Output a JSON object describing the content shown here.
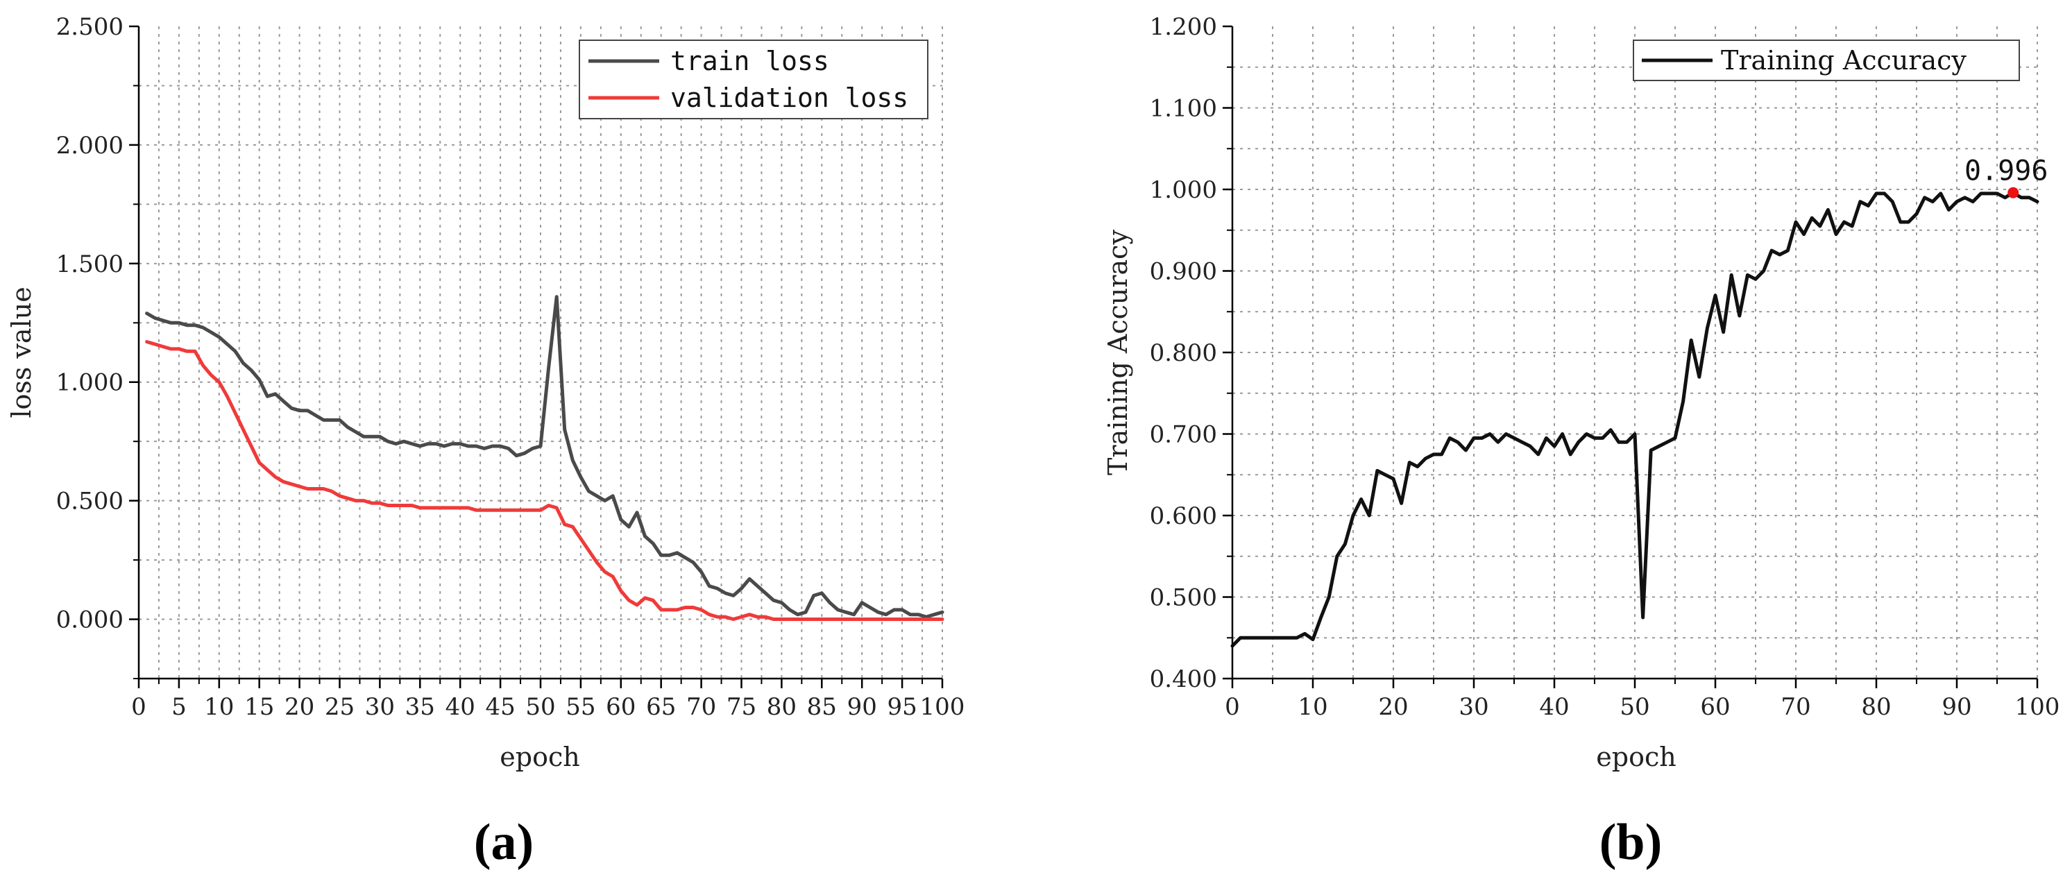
{
  "chart_data": [
    {
      "type": "line",
      "panel_label": "(a)",
      "xlabel": "epoch",
      "ylabel": "loss value",
      "xlim": [
        0,
        100
      ],
      "ylim": [
        -0.25,
        2.5
      ],
      "x_ticks": [
        "0",
        "5",
        "10",
        "15",
        "20",
        "25",
        "30",
        "35",
        "40",
        "45",
        "50",
        "55",
        "60",
        "65",
        "70",
        "75",
        "80",
        "85",
        "90",
        "95",
        "100"
      ],
      "y_ticks": [
        "0.000",
        "0.500",
        "1.000",
        "1.500",
        "2.000",
        "2.500"
      ],
      "y_tick_values": [
        0,
        0.5,
        1.0,
        1.5,
        2.0,
        2.5
      ],
      "grid": true,
      "legend_position": "top-right",
      "series": [
        {
          "name": "train loss",
          "color": "#4a4a4a",
          "x": [
            1,
            2,
            3,
            4,
            5,
            6,
            7,
            8,
            9,
            10,
            11,
            12,
            13,
            14,
            15,
            16,
            17,
            18,
            19,
            20,
            21,
            22,
            23,
            24,
            25,
            26,
            27,
            28,
            29,
            30,
            31,
            32,
            33,
            34,
            35,
            36,
            37,
            38,
            39,
            40,
            41,
            42,
            43,
            44,
            45,
            46,
            47,
            48,
            49,
            50,
            51,
            52,
            53,
            54,
            55,
            56,
            57,
            58,
            59,
            60,
            61,
            62,
            63,
            64,
            65,
            66,
            67,
            68,
            69,
            70,
            71,
            72,
            73,
            74,
            75,
            76,
            77,
            78,
            79,
            80,
            81,
            82,
            83,
            84,
            85,
            86,
            87,
            88,
            89,
            90,
            91,
            92,
            93,
            94,
            95,
            96,
            97,
            98,
            99,
            100
          ],
          "y": [
            1.29,
            1.27,
            1.26,
            1.25,
            1.25,
            1.24,
            1.24,
            1.23,
            1.21,
            1.19,
            1.16,
            1.13,
            1.08,
            1.05,
            1.01,
            0.94,
            0.95,
            0.92,
            0.89,
            0.88,
            0.88,
            0.86,
            0.84,
            0.84,
            0.84,
            0.81,
            0.79,
            0.77,
            0.77,
            0.77,
            0.75,
            0.74,
            0.75,
            0.74,
            0.73,
            0.74,
            0.74,
            0.73,
            0.74,
            0.74,
            0.73,
            0.73,
            0.72,
            0.73,
            0.73,
            0.72,
            0.69,
            0.7,
            0.72,
            0.73,
            1.06,
            1.36,
            0.8,
            0.67,
            0.6,
            0.54,
            0.52,
            0.5,
            0.52,
            0.42,
            0.39,
            0.45,
            0.35,
            0.32,
            0.27,
            0.27,
            0.28,
            0.26,
            0.24,
            0.2,
            0.14,
            0.13,
            0.11,
            0.1,
            0.13,
            0.17,
            0.14,
            0.11,
            0.08,
            0.07,
            0.04,
            0.02,
            0.03,
            0.1,
            0.11,
            0.07,
            0.04,
            0.03,
            0.02,
            0.07,
            0.05,
            0.03,
            0.02,
            0.04,
            0.04,
            0.02,
            0.02,
            0.01,
            0.02,
            0.03
          ]
        },
        {
          "name": "validation loss",
          "color": "#f03a3a",
          "x": [
            1,
            2,
            3,
            4,
            5,
            6,
            7,
            8,
            9,
            10,
            11,
            12,
            13,
            14,
            15,
            16,
            17,
            18,
            19,
            20,
            21,
            22,
            23,
            24,
            25,
            26,
            27,
            28,
            29,
            30,
            31,
            32,
            33,
            34,
            35,
            36,
            37,
            38,
            39,
            40,
            41,
            42,
            43,
            44,
            45,
            46,
            47,
            48,
            49,
            50,
            51,
            52,
            53,
            54,
            55,
            56,
            57,
            58,
            59,
            60,
            61,
            62,
            63,
            64,
            65,
            66,
            67,
            68,
            69,
            70,
            71,
            72,
            73,
            74,
            75,
            76,
            77,
            78,
            79,
            80,
            81,
            82,
            83,
            84,
            85,
            86,
            87,
            88,
            89,
            90,
            91,
            92,
            93,
            94,
            95,
            96,
            97,
            98,
            99,
            100
          ],
          "y": [
            1.17,
            1.16,
            1.15,
            1.14,
            1.14,
            1.13,
            1.13,
            1.07,
            1.03,
            1.0,
            0.94,
            0.87,
            0.8,
            0.73,
            0.66,
            0.63,
            0.6,
            0.58,
            0.57,
            0.56,
            0.55,
            0.55,
            0.55,
            0.54,
            0.52,
            0.51,
            0.5,
            0.5,
            0.49,
            0.49,
            0.48,
            0.48,
            0.48,
            0.48,
            0.47,
            0.47,
            0.47,
            0.47,
            0.47,
            0.47,
            0.47,
            0.46,
            0.46,
            0.46,
            0.46,
            0.46,
            0.46,
            0.46,
            0.46,
            0.46,
            0.48,
            0.47,
            0.4,
            0.39,
            0.34,
            0.29,
            0.24,
            0.2,
            0.18,
            0.12,
            0.08,
            0.06,
            0.09,
            0.08,
            0.04,
            0.04,
            0.04,
            0.05,
            0.05,
            0.04,
            0.02,
            0.01,
            0.01,
            0.0,
            0.01,
            0.02,
            0.01,
            0.01,
            0.0,
            0.0,
            0.0,
            0.0,
            0.0,
            0.0,
            0.0,
            0.0,
            0.0,
            0.0,
            0.0,
            0.0,
            0.0,
            0.0,
            0.0,
            0.0,
            0.0,
            0.0,
            0.0,
            0.0,
            0.0,
            0.0
          ]
        }
      ]
    },
    {
      "type": "line",
      "panel_label": "(b)",
      "xlabel": "epoch",
      "ylabel": "Training Accuracy",
      "xlim": [
        0,
        100
      ],
      "ylim": [
        0.4,
        1.2
      ],
      "x_ticks": [
        "0",
        "10",
        "20",
        "30",
        "40",
        "50",
        "60",
        "70",
        "80",
        "90",
        "100"
      ],
      "y_ticks": [
        "0.400",
        "0.500",
        "0.600",
        "0.700",
        "0.800",
        "0.900",
        "1.000",
        "1.100",
        "1.200"
      ],
      "y_tick_values": [
        0.4,
        0.5,
        0.6,
        0.7,
        0.8,
        0.9,
        1.0,
        1.1,
        1.2
      ],
      "grid": true,
      "legend_position": "top-right",
      "annotation": {
        "x": 97,
        "y": 0.996,
        "text": "0.996",
        "color": "#ee1111"
      },
      "series": [
        {
          "name": "Training Accuracy",
          "color": "#111111",
          "x": [
            0,
            1,
            2,
            3,
            4,
            5,
            6,
            7,
            8,
            9,
            10,
            11,
            12,
            13,
            14,
            15,
            16,
            17,
            18,
            19,
            20,
            21,
            22,
            23,
            24,
            25,
            26,
            27,
            28,
            29,
            30,
            31,
            32,
            33,
            34,
            35,
            36,
            37,
            38,
            39,
            40,
            41,
            42,
            43,
            44,
            45,
            46,
            47,
            48,
            49,
            50,
            51,
            52,
            53,
            54,
            55,
            56,
            57,
            58,
            59,
            60,
            61,
            62,
            63,
            64,
            65,
            66,
            67,
            68,
            69,
            70,
            71,
            72,
            73,
            74,
            75,
            76,
            77,
            78,
            79,
            80,
            81,
            82,
            83,
            84,
            85,
            86,
            87,
            88,
            89,
            90,
            91,
            92,
            93,
            94,
            95,
            96,
            97,
            98,
            99,
            100
          ],
          "y": [
            0.44,
            0.45,
            0.45,
            0.45,
            0.45,
            0.45,
            0.45,
            0.45,
            0.45,
            0.455,
            0.448,
            0.475,
            0.5,
            0.55,
            0.565,
            0.6,
            0.62,
            0.6,
            0.655,
            0.65,
            0.645,
            0.615,
            0.665,
            0.66,
            0.67,
            0.675,
            0.675,
            0.695,
            0.69,
            0.68,
            0.695,
            0.695,
            0.7,
            0.69,
            0.7,
            0.695,
            0.69,
            0.685,
            0.675,
            0.695,
            0.685,
            0.7,
            0.675,
            0.69,
            0.7,
            0.695,
            0.695,
            0.705,
            0.69,
            0.69,
            0.7,
            0.475,
            0.68,
            0.685,
            0.69,
            0.695,
            0.74,
            0.815,
            0.77,
            0.83,
            0.87,
            0.825,
            0.895,
            0.845,
            0.895,
            0.89,
            0.9,
            0.925,
            0.92,
            0.925,
            0.96,
            0.945,
            0.965,
            0.955,
            0.975,
            0.945,
            0.96,
            0.955,
            0.985,
            0.98,
            0.995,
            0.995,
            0.985,
            0.96,
            0.96,
            0.97,
            0.99,
            0.985,
            0.995,
            0.975,
            0.985,
            0.99,
            0.985,
            0.995,
            0.995,
            0.995,
            0.99,
            0.996,
            0.99,
            0.99,
            0.985
          ]
        }
      ]
    }
  ]
}
